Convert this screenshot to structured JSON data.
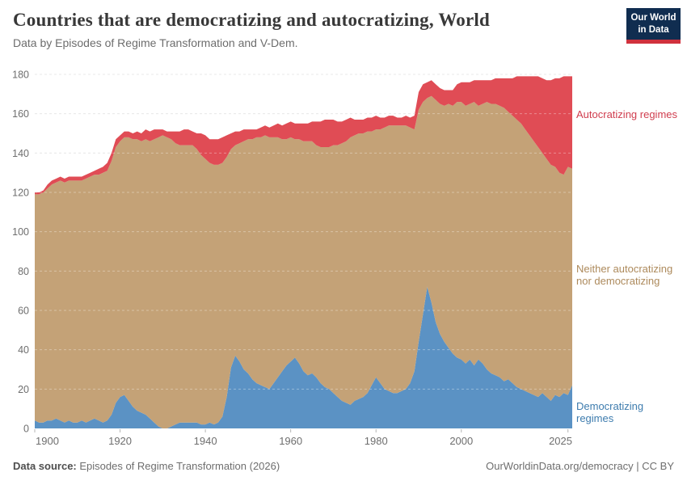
{
  "header": {
    "title": "Countries that are democratizing and autocratizing, World",
    "subtitle": "Data by Episodes of Regime Transformation and V-Dem."
  },
  "logo": {
    "line1": "Our World",
    "line2": "in Data"
  },
  "annotations": {
    "autocratizing": {
      "label": "Autocratizing regimes",
      "color": "#d03d4e"
    },
    "neither": {
      "label": "Neither autocratizing nor democratizing",
      "color": "#ad8a5c"
    },
    "democratizing": {
      "label": "Democratizing regimes",
      "color": "#3e7cae"
    }
  },
  "footer": {
    "source_label": "Data source:",
    "source_value": " Episodes of Regime Transformation (2026)",
    "attribution": "OurWorldinData.org/democracy | CC BY"
  },
  "chart_data": {
    "type": "area",
    "stacked": true,
    "x_start": 1900,
    "x_end": 2026,
    "x_ticks": [
      1900,
      1920,
      1940,
      1960,
      1980,
      2000,
      2025
    ],
    "y_ticks": [
      0,
      20,
      40,
      60,
      80,
      100,
      120,
      140,
      160,
      180
    ],
    "ylim": [
      0,
      180
    ],
    "grid": "dashed",
    "colors": {
      "grid": "#dcdcdc",
      "tick_text": "#6e6e6e",
      "tick_mark": "#b5b5b5"
    },
    "series": [
      {
        "id": "democratizing",
        "name": "Democratizing regimes",
        "color": "#5b92c4",
        "values": [
          4,
          3,
          3,
          4,
          4,
          5,
          4,
          3,
          4,
          3,
          3,
          4,
          3,
          4,
          5,
          4,
          3,
          4,
          7,
          13,
          16,
          17,
          14,
          11,
          9,
          8,
          7,
          5,
          3,
          1,
          0,
          0,
          1,
          2,
          3,
          3,
          3,
          3,
          3,
          2,
          2,
          3,
          2,
          3,
          6,
          16,
          31,
          37,
          34,
          30,
          28,
          25,
          23,
          22,
          21,
          20,
          23,
          26,
          29,
          32,
          34,
          36,
          33,
          29,
          27,
          28,
          26,
          23,
          21,
          20,
          18,
          16,
          14,
          13,
          12,
          14,
          15,
          16,
          18,
          22,
          26,
          23,
          20,
          19,
          18,
          18,
          19,
          20,
          23,
          29,
          44,
          58,
          72,
          64,
          54,
          48,
          44,
          41,
          38,
          36,
          35,
          33,
          35,
          32,
          35,
          33,
          30,
          28,
          27,
          26,
          24,
          25,
          23,
          21,
          20,
          19,
          18,
          17,
          16,
          18,
          16,
          14,
          17,
          16,
          18,
          17,
          22
        ]
      },
      {
        "id": "neither",
        "name": "Neither autocratizing nor democratizing",
        "color": "#c4a277",
        "values": [
          115,
          116,
          117,
          118,
          120,
          120,
          122,
          122,
          122,
          123,
          123,
          122,
          124,
          124,
          124,
          125,
          127,
          127,
          129,
          130,
          130,
          131,
          134,
          136,
          138,
          138,
          140,
          141,
          144,
          147,
          149,
          148,
          146,
          143,
          141,
          141,
          141,
          141,
          139,
          137,
          135,
          132,
          132,
          131,
          129,
          122,
          111,
          107,
          111,
          116,
          119,
          122,
          125,
          126,
          128,
          128,
          125,
          122,
          118,
          115,
          114,
          111,
          114,
          117,
          119,
          118,
          118,
          120,
          122,
          123,
          126,
          128,
          131,
          133,
          136,
          135,
          135,
          134,
          133,
          129,
          126,
          129,
          133,
          135,
          136,
          136,
          135,
          134,
          130,
          123,
          118,
          108,
          96,
          105,
          113,
          117,
          120,
          124,
          126,
          130,
          131,
          131,
          130,
          134,
          129,
          132,
          136,
          137,
          138,
          138,
          139,
          136,
          136,
          136,
          135,
          133,
          131,
          129,
          127,
          122,
          121,
          120,
          116,
          114,
          111,
          116,
          110
        ]
      },
      {
        "id": "autocratizing",
        "name": "Autocratizing regimes",
        "color": "#e04c55",
        "values": [
          1,
          1,
          1,
          2,
          2,
          2,
          2,
          2,
          2,
          2,
          2,
          2,
          2,
          2,
          2,
          3,
          3,
          4,
          4,
          4,
          3,
          3,
          3,
          3,
          4,
          4,
          5,
          5,
          5,
          4,
          3,
          3,
          4,
          6,
          7,
          8,
          8,
          7,
          8,
          11,
          12,
          12,
          13,
          13,
          13,
          11,
          8,
          7,
          6,
          6,
          5,
          5,
          4,
          5,
          5,
          5,
          6,
          7,
          7,
          8,
          8,
          8,
          8,
          9,
          9,
          10,
          12,
          13,
          14,
          14,
          13,
          12,
          11,
          11,
          10,
          8,
          7,
          7,
          7,
          7,
          7,
          6,
          5,
          5,
          5,
          4,
          4,
          5,
          5,
          7,
          9,
          9,
          8,
          8,
          8,
          8,
          8,
          7,
          8,
          9,
          10,
          12,
          11,
          11,
          13,
          12,
          11,
          12,
          13,
          14,
          15,
          17,
          19,
          22,
          24,
          27,
          30,
          33,
          36,
          38,
          40,
          43,
          45,
          48,
          50,
          46,
          47
        ]
      }
    ]
  }
}
